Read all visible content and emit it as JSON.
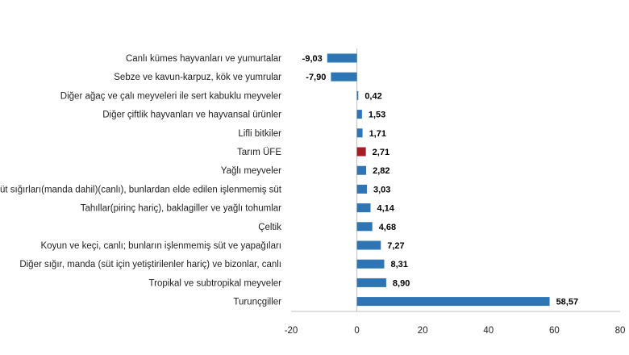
{
  "chart_data": {
    "type": "bar",
    "orientation": "horizontal",
    "categories": [
      "Canlı kümes hayvanları ve yumurtalar",
      "Sebze ve kavun-karpuz, kök ve yumrular",
      "Diğer ağaç ve çalı meyveleri ile sert kabuklu meyveler",
      "Diğer çiftlik hayvanları ve hayvansal ürünler",
      "Lifli bitkiler",
      "Tarım ÜFE",
      "Yağlı meyveler",
      "Süt sığırları(manda dahil)(canlı), bunlardan elde edilen işlenmemiş süt",
      "Tahıllar(pirinç hariç), baklagiller ve yağlı tohumlar",
      "Çeltik",
      "Koyun ve keçi, canlı; bunların işlenmemiş süt ve yapağıları",
      "Diğer sığır, manda (süt için yetiştirilenler hariç) ve bizonlar, canlı",
      "Tropikal ve subtropikal meyveler",
      "Turunçgiller"
    ],
    "values": [
      -9.03,
      -7.9,
      0.42,
      1.53,
      1.71,
      2.71,
      2.82,
      3.03,
      4.14,
      4.68,
      7.27,
      8.31,
      8.9,
      58.57
    ],
    "value_labels": [
      "-9,03",
      "-7,90",
      "0,42",
      "1,53",
      "1,71",
      "2,71",
      "2,82",
      "3,03",
      "4,14",
      "4,68",
      "7,27",
      "8,31",
      "8,90",
      "58,57"
    ],
    "highlight_index": 5,
    "xlim": [
      -20,
      80
    ],
    "xticks": [
      -20,
      0,
      20,
      40,
      60,
      80
    ],
    "xtick_labels": [
      "-20",
      "0",
      "20",
      "40",
      "60",
      "80"
    ],
    "grid": false,
    "title": "",
    "xlabel": "",
    "ylabel": "",
    "colors": {
      "bar": "#2E75B6",
      "highlight": "#A51C24",
      "axis": "#BFBFBF"
    }
  }
}
